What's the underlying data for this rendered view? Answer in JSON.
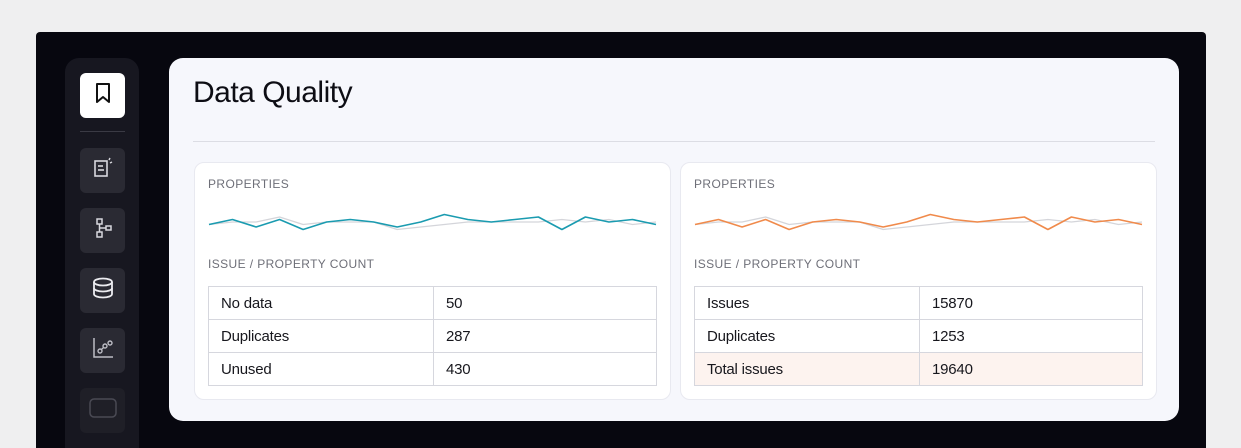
{
  "page": {
    "title": "Data Quality"
  },
  "sidebar": {
    "items": [
      {
        "icon": "bookmark-icon",
        "active": true
      },
      {
        "icon": "clipboard-spark-icon"
      },
      {
        "icon": "hierarchy-icon"
      },
      {
        "icon": "database-icon"
      },
      {
        "icon": "chart-nodes-icon"
      },
      {
        "icon": "window-icon"
      }
    ]
  },
  "cards": [
    {
      "section_label": "PROPERTIES",
      "table_label": "ISSUE / PROPERTY COUNT",
      "accent": "#1a9bb0",
      "rows": [
        {
          "label": "No data",
          "value": "50"
        },
        {
          "label": "Duplicates",
          "value": "287"
        },
        {
          "label": "Unused",
          "value": "430"
        }
      ]
    },
    {
      "section_label": "PROPERTIES",
      "table_label": "ISSUE / PROPERTY COUNT",
      "accent": "#f08a4b",
      "rows": [
        {
          "label": "Issues",
          "value": "15870"
        },
        {
          "label": "Duplicates",
          "value": "1253"
        },
        {
          "label": "Total issues",
          "value": "19640",
          "highlight": true
        }
      ]
    }
  ],
  "chart_data": [
    {
      "type": "line",
      "series": [
        {
          "values": [
            5,
            7,
            4,
            7,
            3,
            6,
            7,
            6,
            4,
            6,
            9,
            7,
            6,
            7,
            8,
            3,
            8,
            6,
            7,
            5
          ]
        },
        {
          "values": [
            5,
            6,
            6,
            8,
            5,
            6,
            6,
            6,
            3,
            4,
            5,
            6,
            6,
            6,
            6,
            7,
            6,
            7,
            5,
            6
          ]
        }
      ],
      "ylim": [
        0,
        12
      ]
    },
    {
      "type": "line",
      "series": [
        {
          "values": [
            5,
            7,
            4,
            7,
            3,
            6,
            7,
            6,
            4,
            6,
            9,
            7,
            6,
            7,
            8,
            3,
            8,
            6,
            7,
            5
          ]
        },
        {
          "values": [
            5,
            6,
            6,
            8,
            5,
            6,
            6,
            6,
            3,
            4,
            5,
            6,
            6,
            6,
            6,
            7,
            6,
            7,
            5,
            6
          ]
        }
      ],
      "ylim": [
        0,
        12
      ]
    }
  ]
}
